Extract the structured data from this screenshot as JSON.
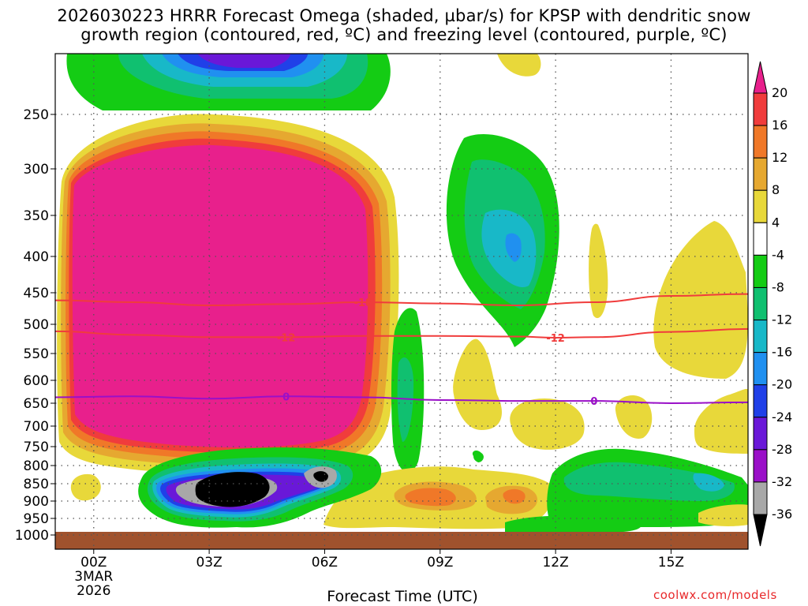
{
  "chart_data": {
    "type": "heatmap",
    "title_line1": "2026030223 HRRR Forecast Omega (shaded, µbar/s) for KPSP with dendritic snow",
    "title_line2": "growth region (contoured, red, ºC) and freezing level (contoured, purple, ºC)",
    "xlabel": "Forecast Time (UTC)",
    "xlim": [
      -1,
      17
    ],
    "x_ticks": [
      {
        "x": 0,
        "label": "00Z",
        "sub": [
          "3MAR",
          "2026"
        ]
      },
      {
        "x": 3,
        "label": "03Z",
        "sub": []
      },
      {
        "x": 6,
        "label": "06Z",
        "sub": []
      },
      {
        "x": 9,
        "label": "09Z",
        "sub": []
      },
      {
        "x": 12,
        "label": "12Z",
        "sub": []
      },
      {
        "x": 15,
        "label": "15Z",
        "sub": []
      }
    ],
    "y_axis": "pressure (hPa), inverted",
    "ylim": [
      200,
      1020
    ],
    "y_ticks": [
      250,
      300,
      350,
      400,
      450,
      500,
      550,
      600,
      650,
      700,
      750,
      800,
      850,
      900,
      950,
      1000
    ],
    "colorbar": {
      "levels": [
        "20",
        "16",
        "12",
        "8",
        "4",
        "-4",
        "-8",
        "-12",
        "-16",
        "-20",
        "-24",
        "-28",
        "-32",
        "-36"
      ],
      "colors": [
        "#e8208c",
        "#f03c3c",
        "#f07828",
        "#e6a830",
        "#e8d83a",
        "#ffffff",
        "#14cc14",
        "#10c070",
        "#18b8c8",
        "#2090f0",
        "#2040e8",
        "#6a18d8",
        "#9a10c8",
        "#a8a8a8",
        "#000000"
      ]
    },
    "contours": [
      {
        "name": "dendritic -18",
        "label": "-18",
        "color": "#f03c3c",
        "points": [
          [
            -1,
            462
          ],
          [
            1,
            465
          ],
          [
            3,
            470
          ],
          [
            5,
            468
          ],
          [
            7,
            465
          ],
          [
            9,
            467
          ],
          [
            11,
            470
          ],
          [
            13,
            465
          ],
          [
            15,
            455
          ],
          [
            17,
            452
          ]
        ],
        "label_x": 7
      },
      {
        "name": "dendritic -12",
        "label": "-12",
        "color": "#f03c3c",
        "points": [
          [
            -1,
            512
          ],
          [
            1,
            518
          ],
          [
            3,
            522
          ],
          [
            5,
            522
          ],
          [
            7,
            520
          ],
          [
            9,
            520
          ],
          [
            11,
            521
          ],
          [
            12,
            523
          ],
          [
            13,
            522
          ],
          [
            15,
            513
          ],
          [
            17,
            508
          ]
        ],
        "label_x": 5,
        "label_x2": 12
      },
      {
        "name": "freezing level 0",
        "label": "0",
        "color": "#9a10c8",
        "points": [
          [
            -1,
            637
          ],
          [
            1,
            635
          ],
          [
            3,
            640
          ],
          [
            5,
            635
          ],
          [
            7,
            637
          ],
          [
            9,
            643
          ],
          [
            11,
            645
          ],
          [
            13,
            645
          ],
          [
            15,
            650
          ],
          [
            17,
            648
          ]
        ],
        "label_x": 5,
        "label_x2": 13
      }
    ],
    "shaded_regions": [
      {
        "name": "upward max",
        "value": "20",
        "color": "#e8208c"
      },
      {
        "name": "downward min",
        "value": "-36",
        "color": "#000000"
      }
    ]
  },
  "credit": "coolwx.com/models"
}
